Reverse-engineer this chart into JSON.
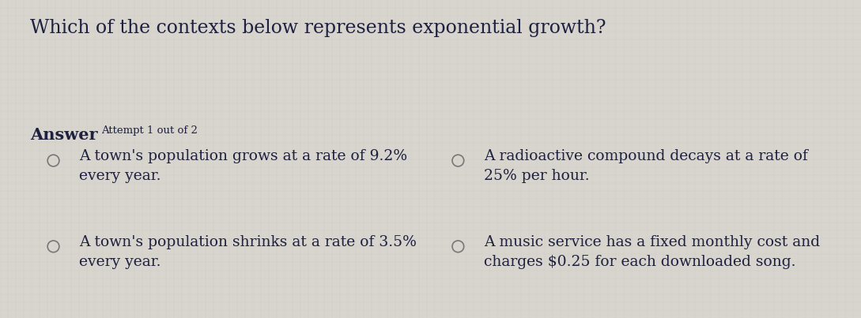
{
  "title": "Which of the contexts below represents exponential growth?",
  "answer_label": "Answer",
  "attempt_label": "Attempt 1 out of 2",
  "options": [
    {
      "id": "A",
      "text": "A town's population grows at a rate of 9.2%\nevery year.",
      "col": 0,
      "row": 0
    },
    {
      "id": "B",
      "text": "A radioactive compound decays at a rate of\n25% per hour.",
      "col": 1,
      "row": 0
    },
    {
      "id": "C",
      "text": "A town's population shrinks at a rate of 3.5%\nevery year.",
      "col": 0,
      "row": 1
    },
    {
      "id": "D",
      "text": "A music service has a fixed monthly cost and\ncharges $0.25 for each downloaded song.",
      "col": 1,
      "row": 1
    }
  ],
  "bg_color": "#d8d4ce",
  "text_color": "#1e2040",
  "title_fontsize": 17,
  "answer_fontsize": 15,
  "attempt_fontsize": 9.5,
  "option_fontsize": 13.5,
  "radio_color": "#777777",
  "grid_color": "#c8c4be"
}
